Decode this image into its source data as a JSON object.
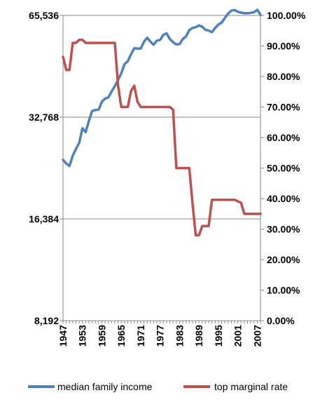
{
  "chart_data": {
    "type": "line",
    "title": "",
    "xlabel": "",
    "ylabel_left": "",
    "ylabel_right": "",
    "left_axis": {
      "scale": "log2",
      "range": [
        8192,
        65536
      ],
      "ticks": [
        8192,
        16384,
        32768,
        65536
      ],
      "tick_labels": [
        "8,192",
        "16,384",
        "32,768",
        "65,536"
      ]
    },
    "right_axis": {
      "scale": "linear",
      "range": [
        0,
        100
      ],
      "ticks": [
        0,
        10,
        20,
        30,
        40,
        50,
        60,
        70,
        80,
        90,
        100
      ],
      "tick_labels": [
        "0.00%",
        "10.00%",
        "20.00%",
        "30.00%",
        "40.00%",
        "50.00%",
        "60.00%",
        "70.00%",
        "80.00%",
        "90.00%",
        "100.00%"
      ]
    },
    "x_range": [
      1947,
      2008
    ],
    "x_tick_labels": [
      "1947",
      "1953",
      "1959",
      "1965",
      "1971",
      "1977",
      "1983",
      "1989",
      "1995",
      "2001",
      "2007"
    ],
    "grid": "horizontal lines at left-axis major ticks",
    "legend_position": "bottom",
    "series": [
      {
        "name": "median family income",
        "axis": "left",
        "color": "#4F81BD",
        "x": [
          1947,
          1948,
          1949,
          1950,
          1951,
          1952,
          1953,
          1954,
          1955,
          1956,
          1957,
          1958,
          1959,
          1960,
          1961,
          1962,
          1963,
          1964,
          1965,
          1966,
          1967,
          1968,
          1969,
          1970,
          1971,
          1972,
          1973,
          1974,
          1975,
          1976,
          1977,
          1978,
          1979,
          1980,
          1981,
          1982,
          1983,
          1984,
          1985,
          1986,
          1987,
          1988,
          1989,
          1990,
          1991,
          1992,
          1993,
          1994,
          1995,
          1996,
          1997,
          1998,
          1999,
          2000,
          2001,
          2002,
          2003,
          2004,
          2005,
          2006,
          2007,
          2008
        ],
        "y": [
          24500,
          23900,
          23500,
          25200,
          26400,
          27500,
          30400,
          29600,
          32000,
          34200,
          34400,
          34500,
          36400,
          37200,
          37500,
          39000,
          40500,
          42200,
          44200,
          47000,
          48000,
          50300,
          52400,
          52300,
          52300,
          54800,
          56300,
          54800,
          53700,
          55200,
          55500,
          57400,
          58000,
          55800,
          54600,
          53800,
          53900,
          55800,
          56800,
          59300,
          60200,
          60500,
          61200,
          60700,
          59400,
          59100,
          58500,
          60200,
          61600,
          62400,
          64400,
          66400,
          67700,
          68000,
          67200,
          66800,
          66500,
          66500,
          66700,
          67000,
          68100,
          65800
        ]
      },
      {
        "name": "top marginal rate",
        "axis": "right",
        "color": "#C0504D",
        "x": [
          1947,
          1948,
          1949,
          1950,
          1951,
          1952,
          1953,
          1954,
          1955,
          1956,
          1957,
          1958,
          1959,
          1960,
          1961,
          1962,
          1963,
          1964,
          1965,
          1966,
          1967,
          1968,
          1969,
          1970,
          1971,
          1972,
          1973,
          1974,
          1975,
          1976,
          1977,
          1978,
          1979,
          1980,
          1981,
          1982,
          1983,
          1984,
          1985,
          1986,
          1987,
          1988,
          1989,
          1990,
          1991,
          1992,
          1993,
          1994,
          1995,
          1996,
          1997,
          1998,
          1999,
          2000,
          2001,
          2002,
          2003,
          2004,
          2005,
          2006,
          2007,
          2008
        ],
        "y": [
          86.45,
          82.13,
          82.13,
          91,
          91,
          92,
          92,
          91,
          91,
          91,
          91,
          91,
          91,
          91,
          91,
          91,
          91,
          77,
          70,
          70,
          70,
          75.25,
          77,
          71.75,
          70,
          70,
          70,
          70,
          70,
          70,
          70,
          70,
          70,
          70,
          69.13,
          50,
          50,
          50,
          50,
          50,
          38.5,
          28,
          28,
          31,
          31,
          31,
          39.6,
          39.6,
          39.6,
          39.6,
          39.6,
          39.6,
          39.6,
          39.6,
          39.1,
          38.6,
          35,
          35,
          35,
          35,
          35,
          35
        ]
      }
    ]
  }
}
